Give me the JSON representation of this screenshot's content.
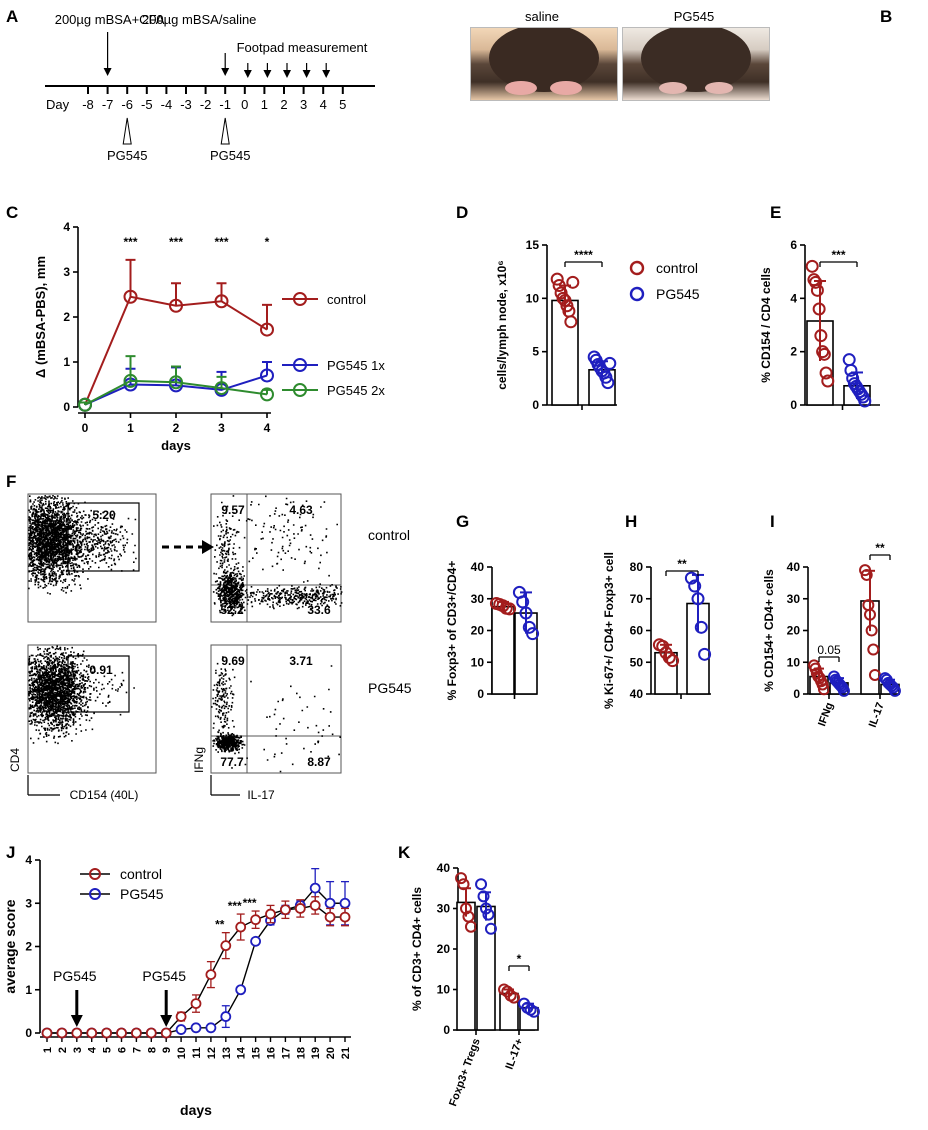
{
  "colors": {
    "control": "#a31d1d",
    "pg545": "#1f1fbf",
    "pg545_2x": "#2e8b2e",
    "axis": "#000000"
  },
  "panels": {
    "A": {
      "letter": "A",
      "label_mbsa_cfa": "200µg mBSA+CFA",
      "label_mbsa_saline": "200µg mBSA/saline",
      "label_footpad": "Footpad measurement",
      "day_word": "Day",
      "days": [
        "-8",
        "-7",
        "-6",
        "-5",
        "-4",
        "-3",
        "-2",
        "-1",
        "0",
        "1",
        "2",
        "3",
        "4",
        "5"
      ],
      "pg545_labels": [
        "PG545",
        "PG545"
      ]
    },
    "B": {
      "letter": "B",
      "label_saline": "saline",
      "label_pg545": "PG545"
    },
    "F": {
      "letter": "F",
      "gate_control": "5.20",
      "gate_pg545": "0.91",
      "quad_control": [
        "9.57",
        "4.63",
        "52.2",
        "33.6"
      ],
      "quad_pg545": [
        "9.69",
        "3.71",
        "77.7",
        "8.87"
      ],
      "row_label_control": "control",
      "row_label_pg545": "PG545",
      "axis_cd4": "CD4",
      "axis_cd154": "CD154 (40L)",
      "axis_ifng": "IFNg",
      "axis_il17": "IL-17"
    },
    "D_legend": {
      "control": "control",
      "pg545": "PG545"
    },
    "J_legend": {
      "control": "control",
      "pg545": "PG545"
    }
  },
  "chart_data": [
    {
      "id": "C",
      "letter": "C",
      "type": "line",
      "x": [
        0,
        1,
        2,
        3,
        4
      ],
      "xlabel": "days",
      "ylabel": "Δ (mBSA-PBS), mm",
      "ylim": [
        0,
        4
      ],
      "yticks": [
        "0",
        "1",
        "2",
        "3",
        "4"
      ],
      "xticks": [
        "0",
        "1",
        "2",
        "3",
        "4"
      ],
      "series": [
        {
          "name": "control",
          "values": [
            0.05,
            2.45,
            2.25,
            2.35,
            1.72
          ],
          "err": [
            0.05,
            0.82,
            0.5,
            0.4,
            0.55
          ]
        },
        {
          "name": "PG545 1x",
          "values": [
            0.05,
            0.5,
            0.48,
            0.38,
            0.7
          ],
          "err": [
            0.05,
            0.35,
            0.4,
            0.4,
            0.3
          ]
        },
        {
          "name": "PG545 2x",
          "values": [
            0.05,
            0.58,
            0.55,
            0.42,
            0.28
          ],
          "err": [
            0.05,
            0.55,
            0.35,
            0.25,
            0.1
          ]
        }
      ],
      "annotations": [
        {
          "x": 1,
          "text": "***"
        },
        {
          "x": 2,
          "text": "***"
        },
        {
          "x": 3,
          "text": "***"
        },
        {
          "x": 4,
          "text": "*"
        }
      ]
    },
    {
      "id": "D",
      "letter": "D",
      "type": "bar",
      "ylabel": "cells/lymph node, x10⁶",
      "ylim": [
        0,
        15
      ],
      "yticks": [
        "0",
        "5",
        "10",
        "15"
      ],
      "categories": [
        "control",
        "PG545"
      ],
      "values": [
        9.8,
        3.3
      ],
      "err": [
        1.4,
        0.8
      ],
      "points": [
        [
          11.8,
          11.2,
          10.5,
          10.0,
          9.8,
          9.3,
          8.8,
          7.8,
          11.5
        ],
        [
          4.5,
          4.2,
          3.8,
          3.5,
          3.2,
          3.0,
          2.6,
          2.1,
          3.9
        ]
      ],
      "significance": "****"
    },
    {
      "id": "E",
      "letter": "E",
      "type": "bar",
      "ylabel": "% CD154 / CD4 cells",
      "ylim": [
        0,
        6
      ],
      "yticks": [
        "0",
        "2",
        "4",
        "6"
      ],
      "categories": [
        "control",
        "PG545"
      ],
      "values": [
        3.15,
        0.72
      ],
      "err": [
        1.5,
        0.5
      ],
      "points": [
        [
          5.2,
          4.7,
          4.6,
          4.3,
          3.6,
          2.6,
          2.0,
          1.9,
          1.2,
          0.9
        ],
        [
          1.7,
          1.3,
          1.0,
          0.8,
          0.7,
          0.6,
          0.5,
          0.4,
          0.3,
          0.15
        ]
      ],
      "significance": "***"
    },
    {
      "id": "G",
      "letter": "G",
      "type": "bar",
      "ylabel": "% Foxp3+ of CD3+/CD4+",
      "ylim": [
        0,
        40
      ],
      "yticks": [
        "0",
        "10",
        "20",
        "30",
        "40"
      ],
      "categories": [
        "control",
        "PG545"
      ],
      "values": [
        27.5,
        25.5
      ],
      "err": [
        1.5,
        6.5
      ],
      "points": [
        [
          28.5,
          28.2,
          27.8,
          27.0,
          26.8
        ],
        [
          32.0,
          29.0,
          25.5,
          21.0,
          19.0
        ]
      ],
      "significance": ""
    },
    {
      "id": "H",
      "letter": "H",
      "type": "bar",
      "ylabel": "% Ki-67+/ CD4+ Foxp3+ cell",
      "ylim": [
        40,
        80
      ],
      "yticks": [
        "40",
        "50",
        "60",
        "70",
        "80"
      ],
      "categories": [
        "control",
        "PG545"
      ],
      "values": [
        53.0,
        68.5
      ],
      "err": [
        2.5,
        9.0
      ],
      "points": [
        [
          55.5,
          55.0,
          53.0,
          51.5,
          50.5
        ],
        [
          76.5,
          74.0,
          70.0,
          61.0,
          52.5
        ]
      ],
      "significance": "**"
    },
    {
      "id": "I",
      "letter": "I",
      "type": "bar",
      "ylabel": "% CD154+ CD4+ cells",
      "ylim": [
        0,
        40
      ],
      "yticks": [
        "0",
        "10",
        "20",
        "30",
        "40"
      ],
      "categories": [
        "IFNg",
        "IL-17"
      ],
      "series": [
        {
          "name": "control",
          "values": [
            5.5,
            29.3
          ],
          "err": [
            2.5,
            9.5
          ],
          "points": [
            [
              9.0,
              8.0,
              6.5,
              5.5,
              5.0,
              4.0,
              3.0,
              1.5
            ],
            [
              39.0,
              37.5,
              28.0,
              25.0,
              20.0,
              14.0,
              6.0
            ]
          ]
        },
        {
          "name": "PG545",
          "values": [
            3.5,
            3.0
          ],
          "err": [
            1.5,
            1.5
          ],
          "points": [
            [
              5.5,
              4.5,
              4.0,
              3.5,
              3.0,
              2.5,
              2.0,
              1.0
            ],
            [
              5.0,
              4.5,
              3.5,
              3.0,
              2.5,
              2.0,
              1.0
            ]
          ]
        }
      ],
      "significance": [
        {
          "category": "IFNg",
          "text": "0.05"
        },
        {
          "category": "IL-17",
          "text": "**"
        }
      ]
    },
    {
      "id": "J",
      "letter": "J",
      "type": "line",
      "x": [
        1,
        2,
        3,
        4,
        5,
        6,
        7,
        8,
        9,
        10,
        11,
        12,
        13,
        14,
        15,
        16,
        17,
        18,
        19,
        20,
        21
      ],
      "xlabel": "days",
      "ylabel": "average score",
      "ylim": [
        0,
        4
      ],
      "yticks": [
        "0",
        "1",
        "2",
        "3",
        "4"
      ],
      "series": [
        {
          "name": "control",
          "values": [
            0,
            0,
            0,
            0,
            0,
            0,
            0,
            0,
            0,
            0.38,
            0.68,
            1.35,
            2.02,
            2.45,
            2.62,
            2.75,
            2.85,
            2.88,
            2.95,
            2.68,
            2.68
          ],
          "err": [
            0,
            0,
            0,
            0,
            0,
            0,
            0,
            0,
            0,
            0.1,
            0.2,
            0.3,
            0.3,
            0.3,
            0.2,
            0.2,
            0.2,
            0.2,
            0.2,
            0.2,
            0.2
          ]
        },
        {
          "name": "PG545",
          "values": [
            0,
            0,
            0,
            0,
            0,
            0,
            0,
            0,
            0,
            0.08,
            0.12,
            0.12,
            0.38,
            1.0,
            2.12,
            2.6,
            2.85,
            2.95,
            3.35,
            3.0,
            3.0
          ],
          "err": [
            0,
            0,
            0,
            0,
            0,
            0,
            0,
            0,
            0,
            0.05,
            0.05,
            0.05,
            0.25,
            0.05,
            0.05,
            0.1,
            0.1,
            0.1,
            0.45,
            0.5,
            0.5
          ]
        }
      ],
      "annotations": [
        {
          "x": 13,
          "text": "**"
        },
        {
          "x": 14,
          "text": "***"
        },
        {
          "x": 15,
          "text": "***"
        }
      ],
      "arrows": [
        {
          "x": 3,
          "text": "PG545"
        },
        {
          "x": 9,
          "text": "PG545"
        }
      ]
    },
    {
      "id": "K",
      "letter": "K",
      "type": "bar",
      "ylabel": "% of CD3+ CD4+ cells",
      "ylim": [
        0,
        40
      ],
      "yticks": [
        "0",
        "10",
        "20",
        "30",
        "40"
      ],
      "categories": [
        "Foxp3+ Tregs",
        "IL-17+"
      ],
      "series": [
        {
          "name": "control",
          "values": [
            31.5,
            9.0
          ],
          "err": [
            3.5,
            1.0
          ],
          "points": [
            [
              37.5,
              36.0,
              30.0,
              28.0,
              25.5
            ],
            [
              10.0,
              9.5,
              8.5,
              8.0
            ]
          ]
        },
        {
          "name": "PG545",
          "values": [
            30.5,
            5.5
          ],
          "err": [
            3.5,
            1.0
          ],
          "points": [
            [
              36.0,
              33.0,
              30.0,
              28.5,
              25.0
            ],
            [
              6.5,
              5.5,
              5.0,
              4.5
            ]
          ]
        }
      ],
      "significance": [
        {
          "category": "IL-17+",
          "text": "*"
        }
      ]
    }
  ]
}
